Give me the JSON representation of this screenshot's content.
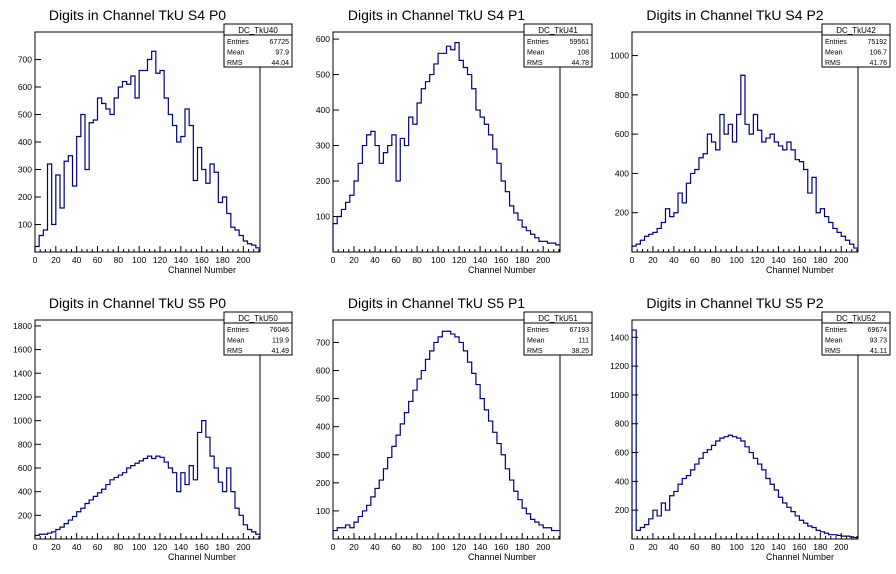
{
  "chart_data": [
    {
      "type": "bar",
      "title": "Digits in Channel TkU S4 P0",
      "xlabel": "Channel Number",
      "xlim": [
        0,
        216
      ],
      "ylim": [
        0,
        800
      ],
      "xticks": [
        0,
        20,
        40,
        60,
        80,
        100,
        120,
        140,
        160,
        180,
        200
      ],
      "yticks": [
        100,
        200,
        300,
        400,
        500,
        600,
        700
      ],
      "stats": {
        "name": "DC_TkU40",
        "rows": [
          [
            "Entries",
            "67725"
          ],
          [
            "Mean",
            "97.9"
          ],
          [
            "RMS",
            "44.04"
          ]
        ]
      },
      "x": [
        0,
        4,
        8,
        12,
        16,
        20,
        24,
        28,
        32,
        36,
        40,
        44,
        48,
        52,
        56,
        60,
        64,
        68,
        72,
        76,
        80,
        84,
        88,
        92,
        96,
        100,
        104,
        108,
        112,
        116,
        120,
        124,
        128,
        132,
        136,
        140,
        144,
        148,
        152,
        156,
        160,
        164,
        168,
        172,
        176,
        180,
        184,
        188,
        192,
        196,
        200,
        204,
        208,
        212
      ],
      "values": [
        20,
        60,
        80,
        320,
        100,
        280,
        160,
        330,
        350,
        240,
        420,
        500,
        300,
        470,
        480,
        560,
        540,
        520,
        500,
        560,
        600,
        620,
        610,
        640,
        560,
        660,
        660,
        700,
        730,
        650,
        660,
        560,
        500,
        460,
        400,
        420,
        520,
        460,
        260,
        380,
        300,
        250,
        320,
        290,
        180,
        200,
        140,
        90,
        80,
        60,
        40,
        30,
        25,
        15
      ]
    },
    {
      "type": "bar",
      "title": "Digits in Channel TkU S4 P1",
      "xlabel": "Channel Number",
      "xlim": [
        0,
        216
      ],
      "ylim": [
        0,
        620
      ],
      "xticks": [
        0,
        20,
        40,
        60,
        80,
        100,
        120,
        140,
        160,
        180,
        200
      ],
      "yticks": [
        100,
        200,
        300,
        400,
        500,
        600
      ],
      "stats": {
        "name": "DC_TkU41",
        "rows": [
          [
            "Entries",
            "59561"
          ],
          [
            "Mean",
            "108"
          ],
          [
            "RMS",
            "44.78"
          ]
        ]
      },
      "x": [
        0,
        4,
        8,
        12,
        16,
        20,
        24,
        28,
        32,
        36,
        40,
        44,
        48,
        52,
        56,
        60,
        64,
        68,
        72,
        76,
        80,
        84,
        88,
        92,
        96,
        100,
        104,
        108,
        112,
        116,
        120,
        124,
        128,
        132,
        136,
        140,
        144,
        148,
        152,
        156,
        160,
        164,
        168,
        172,
        176,
        180,
        184,
        188,
        192,
        196,
        200,
        204,
        208,
        212
      ],
      "values": [
        80,
        100,
        120,
        140,
        160,
        200,
        250,
        300,
        330,
        340,
        300,
        250,
        280,
        300,
        330,
        200,
        320,
        300,
        380,
        360,
        420,
        460,
        480,
        500,
        530,
        560,
        560,
        580,
        570,
        590,
        540,
        520,
        500,
        460,
        400,
        380,
        360,
        330,
        290,
        250,
        200,
        170,
        130,
        110,
        90,
        70,
        60,
        50,
        40,
        30,
        30,
        25,
        25,
        20
      ]
    },
    {
      "type": "bar",
      "title": "Digits in Channel TkU S4 P2",
      "xlabel": "Channel Number",
      "xlim": [
        0,
        216
      ],
      "ylim": [
        0,
        1120
      ],
      "xticks": [
        0,
        20,
        40,
        60,
        80,
        100,
        120,
        140,
        160,
        180,
        200
      ],
      "yticks": [
        200,
        400,
        600,
        800,
        1000
      ],
      "stats": {
        "name": "DC_TkU42",
        "rows": [
          [
            "Entries",
            "75192"
          ],
          [
            "Mean",
            "106.7"
          ],
          [
            "RMS",
            "41.76"
          ]
        ]
      },
      "x": [
        0,
        4,
        8,
        12,
        16,
        20,
        24,
        28,
        32,
        36,
        40,
        44,
        48,
        52,
        56,
        60,
        64,
        68,
        72,
        76,
        80,
        84,
        88,
        92,
        96,
        100,
        104,
        108,
        112,
        116,
        120,
        124,
        128,
        132,
        136,
        140,
        144,
        148,
        152,
        156,
        160,
        164,
        168,
        172,
        176,
        180,
        184,
        188,
        192,
        196,
        200,
        204,
        208,
        212
      ],
      "values": [
        30,
        40,
        60,
        80,
        90,
        100,
        120,
        150,
        220,
        180,
        200,
        300,
        250,
        350,
        400,
        420,
        480,
        500,
        600,
        560,
        520,
        700,
        600,
        650,
        560,
        700,
        900,
        650,
        600,
        700,
        620,
        560,
        580,
        600,
        560,
        540,
        520,
        560,
        520,
        470,
        460,
        420,
        300,
        380,
        200,
        220,
        180,
        150,
        120,
        100,
        80,
        60,
        40,
        20
      ]
    },
    {
      "type": "bar",
      "title": "Digits in Channel TkU S5 P0",
      "xlabel": "Channel Number",
      "xlim": [
        0,
        216
      ],
      "ylim": [
        0,
        1850
      ],
      "xticks": [
        0,
        20,
        40,
        60,
        80,
        100,
        120,
        140,
        160,
        180,
        200
      ],
      "yticks": [
        200,
        400,
        600,
        800,
        1000,
        1200,
        1400,
        1600,
        1800
      ],
      "stats": {
        "name": "DC_TkU50",
        "rows": [
          [
            "Entries",
            "76046"
          ],
          [
            "Mean",
            "119.9"
          ],
          [
            "RMS",
            "41.49"
          ]
        ]
      },
      "x": [
        0,
        4,
        8,
        12,
        16,
        20,
        24,
        28,
        32,
        36,
        40,
        44,
        48,
        52,
        56,
        60,
        64,
        68,
        72,
        76,
        80,
        84,
        88,
        92,
        96,
        100,
        104,
        108,
        112,
        116,
        120,
        124,
        128,
        132,
        136,
        140,
        144,
        148,
        152,
        156,
        160,
        164,
        168,
        172,
        176,
        180,
        184,
        188,
        192,
        196,
        200,
        204,
        208,
        212
      ],
      "values": [
        30,
        40,
        40,
        50,
        60,
        80,
        100,
        130,
        160,
        190,
        230,
        260,
        300,
        330,
        360,
        390,
        420,
        460,
        500,
        520,
        540,
        560,
        600,
        620,
        640,
        660,
        680,
        700,
        680,
        700,
        690,
        650,
        600,
        560,
        400,
        560,
        460,
        620,
        500,
        900,
        1000,
        860,
        700,
        600,
        480,
        400,
        600,
        400,
        260,
        200,
        120,
        80,
        60,
        40
      ]
    },
    {
      "type": "bar",
      "title": "Digits in Channel TkU S5 P1",
      "xlabel": "Channel Number",
      "xlim": [
        0,
        216
      ],
      "ylim": [
        0,
        780
      ],
      "xticks": [
        0,
        20,
        40,
        60,
        80,
        100,
        120,
        140,
        160,
        180,
        200
      ],
      "yticks": [
        100,
        200,
        300,
        400,
        500,
        600,
        700
      ],
      "stats": {
        "name": "DC_TkU51",
        "rows": [
          [
            "Entries",
            "67193"
          ],
          [
            "Mean",
            "111"
          ],
          [
            "RMS",
            "38.25"
          ]
        ]
      },
      "x": [
        0,
        4,
        8,
        12,
        16,
        20,
        24,
        28,
        32,
        36,
        40,
        44,
        48,
        52,
        56,
        60,
        64,
        68,
        72,
        76,
        80,
        84,
        88,
        92,
        96,
        100,
        104,
        108,
        112,
        116,
        120,
        124,
        128,
        132,
        136,
        140,
        144,
        148,
        152,
        156,
        160,
        164,
        168,
        172,
        176,
        180,
        184,
        188,
        192,
        196,
        200,
        204,
        208,
        212
      ],
      "values": [
        30,
        40,
        40,
        50,
        40,
        60,
        80,
        100,
        120,
        150,
        180,
        210,
        250,
        290,
        330,
        370,
        410,
        450,
        490,
        530,
        570,
        600,
        640,
        670,
        700,
        720,
        740,
        740,
        730,
        720,
        700,
        670,
        630,
        590,
        550,
        500,
        460,
        420,
        380,
        340,
        300,
        250,
        210,
        170,
        140,
        110,
        90,
        70,
        60,
        50,
        40,
        40,
        30,
        30
      ]
    },
    {
      "type": "bar",
      "title": "Digits in Channel TkU S5 P2",
      "xlabel": "Channel Number",
      "xlim": [
        0,
        216
      ],
      "ylim": [
        0,
        1520
      ],
      "xticks": [
        0,
        20,
        40,
        60,
        80,
        100,
        120,
        140,
        160,
        180,
        200
      ],
      "yticks": [
        200,
        400,
        600,
        800,
        1000,
        1200,
        1400
      ],
      "stats": {
        "name": "DC_TkU52",
        "rows": [
          [
            "Entries",
            "69674"
          ],
          [
            "Mean",
            "93.73"
          ],
          [
            "RMS",
            "41.11"
          ]
        ]
      },
      "x": [
        0,
        4,
        8,
        12,
        16,
        20,
        24,
        28,
        32,
        36,
        40,
        44,
        48,
        52,
        56,
        60,
        64,
        68,
        72,
        76,
        80,
        84,
        88,
        92,
        96,
        100,
        104,
        108,
        112,
        116,
        120,
        124,
        128,
        132,
        136,
        140,
        144,
        148,
        152,
        156,
        160,
        164,
        168,
        172,
        176,
        180,
        184,
        188,
        192,
        196,
        200,
        204,
        208,
        212
      ],
      "values": [
        1450,
        60,
        80,
        100,
        140,
        200,
        160,
        250,
        200,
        300,
        330,
        380,
        420,
        440,
        480,
        520,
        560,
        600,
        620,
        650,
        680,
        700,
        710,
        720,
        710,
        700,
        680,
        640,
        600,
        560,
        520,
        480,
        420,
        380,
        340,
        290,
        250,
        220,
        190,
        160,
        130,
        110,
        90,
        80,
        60,
        50,
        40,
        30,
        30,
        25,
        20,
        20,
        15,
        10
      ]
    }
  ]
}
